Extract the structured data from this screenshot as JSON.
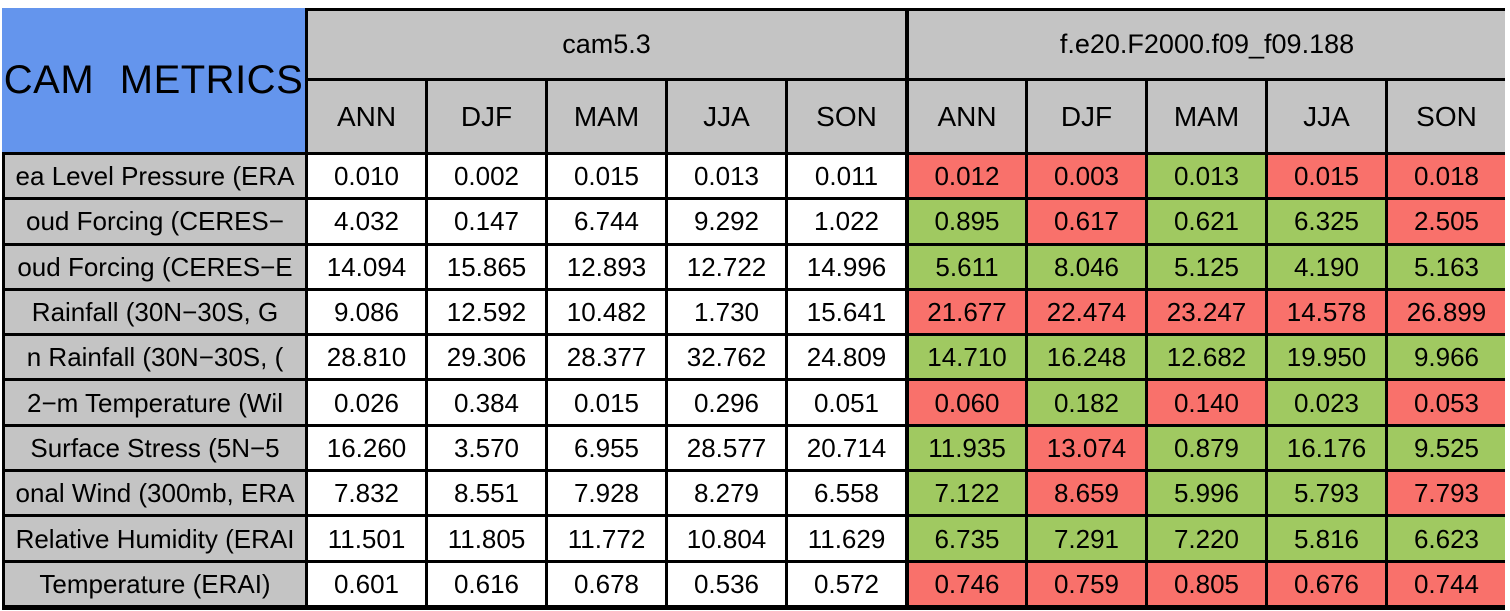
{
  "title": "CAM METRICS",
  "colors": {
    "title_bg": "#6495ED",
    "header_bg": "#C4C4C4",
    "base_cell_bg": "#FFFFFF",
    "better_bg": "#A0C961",
    "worse_bg": "#F9716B",
    "border": "#000000"
  },
  "chart_data": {
    "type": "table",
    "title": "CAM METRICS",
    "column_groups": [
      "cam5.3",
      "f.e20.F2000.f09_f09.188"
    ],
    "seasons": [
      "ANN",
      "DJF",
      "MAM",
      "JJA",
      "SON"
    ],
    "status_legend": {
      "better": "green (improved vs cam5.3)",
      "worse": "red (degraded vs cam5.3)"
    },
    "rows": [
      {
        "label": "ea Level Pressure (ERA",
        "cam53": [
          "0.010",
          "0.002",
          "0.015",
          "0.013",
          "0.011"
        ],
        "test": [
          "0.012",
          "0.003",
          "0.013",
          "0.015",
          "0.018"
        ],
        "status": [
          "worse",
          "worse",
          "better",
          "worse",
          "worse"
        ]
      },
      {
        "label": "oud Forcing (CERES−",
        "cam53": [
          "4.032",
          "0.147",
          "6.744",
          "9.292",
          "1.022"
        ],
        "test": [
          "0.895",
          "0.617",
          "0.621",
          "6.325",
          "2.505"
        ],
        "status": [
          "better",
          "worse",
          "better",
          "better",
          "worse"
        ]
      },
      {
        "label": "oud Forcing (CERES−E",
        "cam53": [
          "14.094",
          "15.865",
          "12.893",
          "12.722",
          "14.996"
        ],
        "test": [
          "5.611",
          "8.046",
          "5.125",
          "4.190",
          "5.163"
        ],
        "status": [
          "better",
          "better",
          "better",
          "better",
          "better"
        ]
      },
      {
        "label": "Rainfall (30N−30S, G",
        "cam53": [
          "9.086",
          "12.592",
          "10.482",
          "1.730",
          "15.641"
        ],
        "test": [
          "21.677",
          "22.474",
          "23.247",
          "14.578",
          "26.899"
        ],
        "status": [
          "worse",
          "worse",
          "worse",
          "worse",
          "worse"
        ]
      },
      {
        "label": "n Rainfall (30N−30S, (",
        "cam53": [
          "28.810",
          "29.306",
          "28.377",
          "32.762",
          "24.809"
        ],
        "test": [
          "14.710",
          "16.248",
          "12.682",
          "19.950",
          "9.966"
        ],
        "status": [
          "better",
          "better",
          "better",
          "better",
          "better"
        ]
      },
      {
        "label": "2−m Temperature (Wil",
        "cam53": [
          "0.026",
          "0.384",
          "0.015",
          "0.296",
          "0.051"
        ],
        "test": [
          "0.060",
          "0.182",
          "0.140",
          "0.023",
          "0.053"
        ],
        "status": [
          "worse",
          "better",
          "worse",
          "better",
          "worse"
        ]
      },
      {
        "label": "Surface Stress (5N−5",
        "cam53": [
          "16.260",
          "3.570",
          "6.955",
          "28.577",
          "20.714"
        ],
        "test": [
          "11.935",
          "13.074",
          "0.879",
          "16.176",
          "9.525"
        ],
        "status": [
          "better",
          "worse",
          "better",
          "better",
          "better"
        ]
      },
      {
        "label": "onal Wind (300mb, ERA",
        "cam53": [
          "7.832",
          "8.551",
          "7.928",
          "8.279",
          "6.558"
        ],
        "test": [
          "7.122",
          "8.659",
          "5.996",
          "5.793",
          "7.793"
        ],
        "status": [
          "better",
          "worse",
          "better",
          "better",
          "worse"
        ]
      },
      {
        "label": "Relative Humidity (ERAI",
        "cam53": [
          "11.501",
          "11.805",
          "11.772",
          "10.804",
          "11.629"
        ],
        "test": [
          "6.735",
          "7.291",
          "7.220",
          "5.816",
          "6.623"
        ],
        "status": [
          "better",
          "better",
          "better",
          "better",
          "better"
        ]
      },
      {
        "label": "Temperature (ERAI)",
        "cam53": [
          "0.601",
          "0.616",
          "0.678",
          "0.536",
          "0.572"
        ],
        "test": [
          "0.746",
          "0.759",
          "0.805",
          "0.676",
          "0.744"
        ],
        "status": [
          "worse",
          "worse",
          "worse",
          "worse",
          "worse"
        ]
      }
    ]
  }
}
